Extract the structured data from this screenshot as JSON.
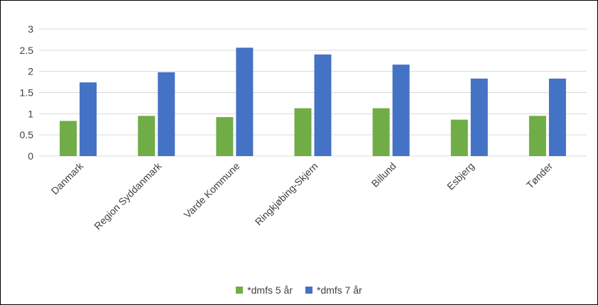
{
  "chart_data": {
    "type": "bar",
    "title": "",
    "xlabel": "",
    "ylabel": "",
    "ylim": [
      0,
      3
    ],
    "yticks": [
      0,
      0.5,
      1,
      1.5,
      2,
      2.5,
      3
    ],
    "ytick_labels": [
      "0",
      "0.5",
      "1",
      "1.5",
      "2",
      "2.5",
      "3"
    ],
    "grid": true,
    "legend_position": "bottom",
    "categories": [
      "Danmark",
      "Region Syddanmark",
      "Varde Kommune",
      "Ringkjøbing-Skjern",
      "Billund",
      "Esbjerg",
      "Tønder"
    ],
    "series": [
      {
        "name": "*dmfs 5 år",
        "color": "#70ad47",
        "values": [
          0.83,
          0.95,
          0.92,
          1.13,
          1.13,
          0.86,
          0.95
        ]
      },
      {
        "name": "*dmfs 7 år",
        "color": "#4472c4",
        "values": [
          1.74,
          1.98,
          2.56,
          2.4,
          2.16,
          1.83,
          1.83
        ]
      }
    ]
  }
}
